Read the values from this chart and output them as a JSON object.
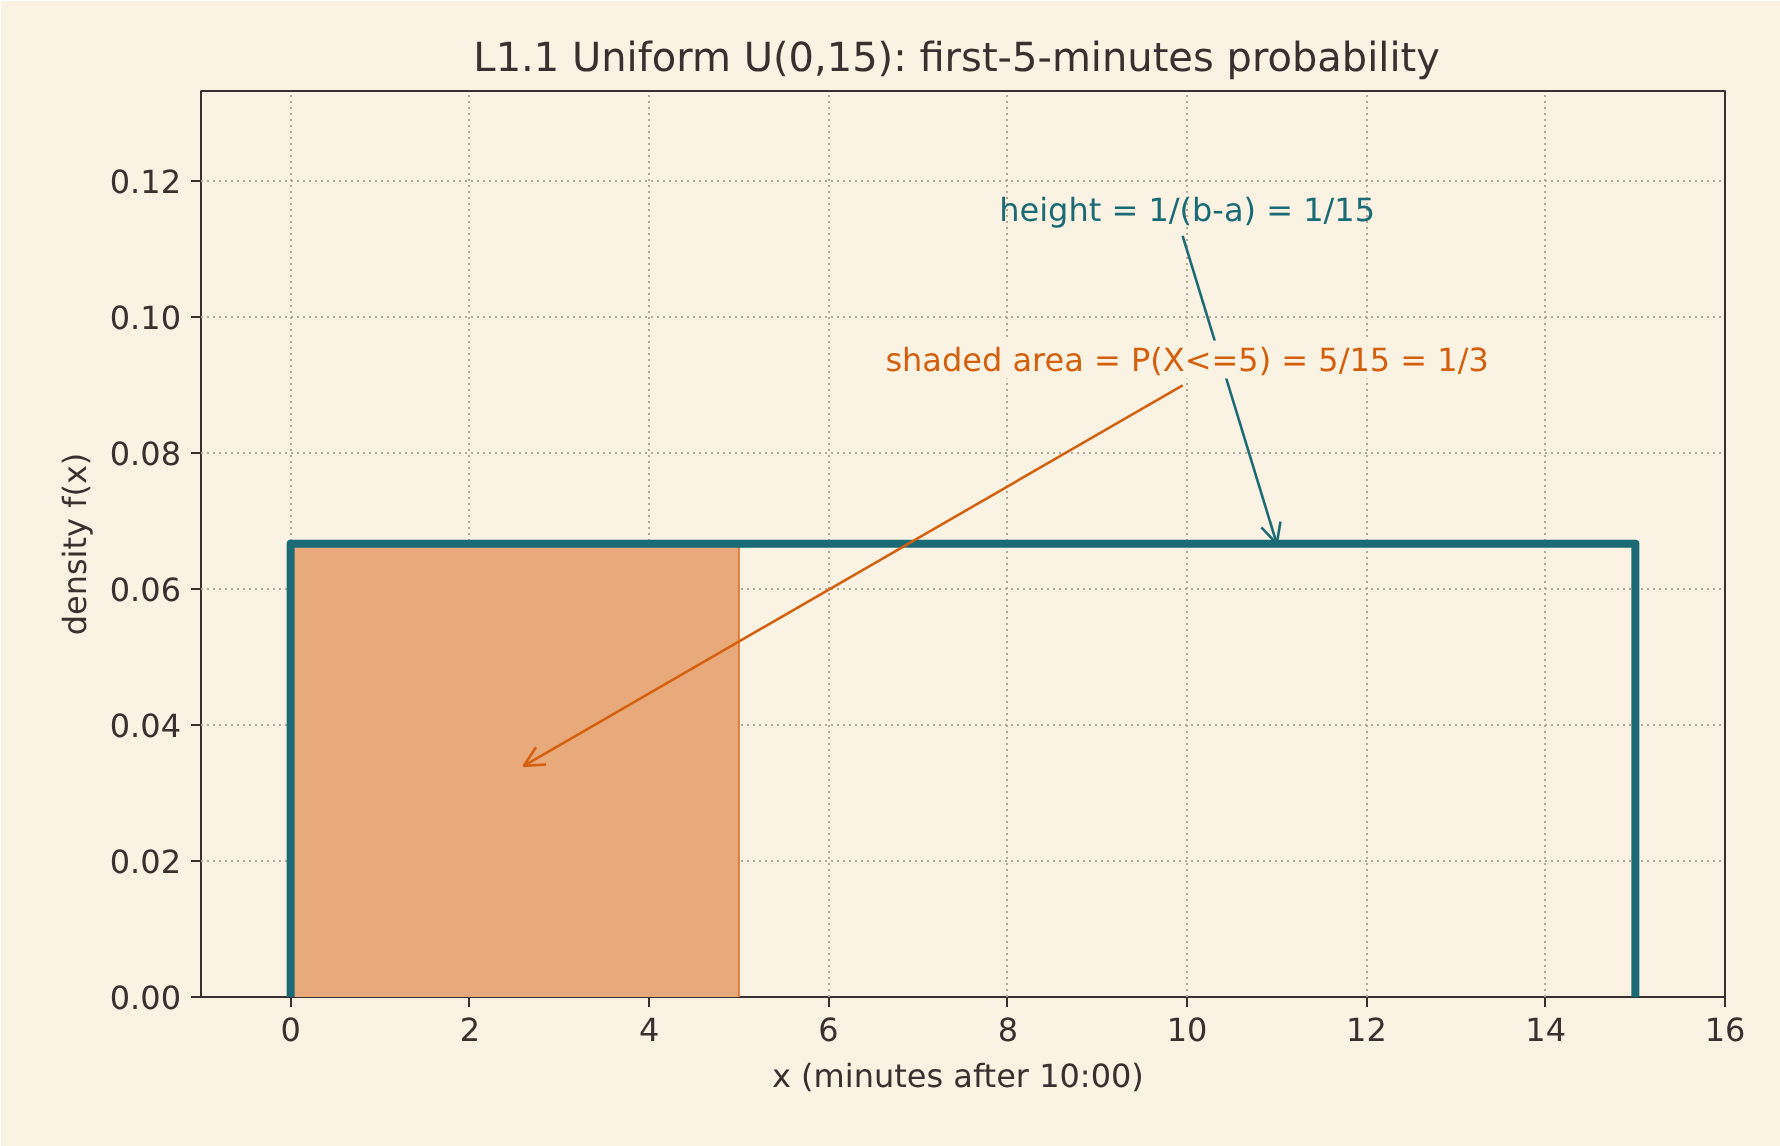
{
  "chart_data": {
    "type": "line",
    "title": "L1.1  Uniform U(0,15): first-5-minutes probability",
    "xlabel": "x  (minutes after 10:00)",
    "ylabel": "density f(x)",
    "series": [
      {
        "type": "area",
        "color": "#e8aa7a",
        "x": [
          0,
          5
        ],
        "values": [
          0.0667,
          0.0667
        ]
      },
      {
        "color": "#1b6b77",
        "x": [
          0,
          0,
          15,
          15
        ],
        "values": [
          0,
          0.0667,
          0.0667,
          0
        ]
      }
    ],
    "annotations": [
      {
        "text": "height = 1/(b-a) = 1/15",
        "x": 11,
        "y": 0.0667
      },
      "shaded area = P(X<=5) = 5/15 = 1/3"
    ],
    "xlim": [
      -1,
      16
    ],
    "ylim": [
      0,
      0.1333
    ],
    "xticks": [
      0,
      2,
      4,
      6,
      8,
      10,
      12,
      14,
      16
    ],
    "yticks": [
      {
        "value": 0,
        "label": "0.00"
      },
      {
        "value": 0.02,
        "label": "0.02"
      },
      {
        "value": 0.04,
        "label": "0.04"
      },
      {
        "value": 0.06,
        "label": "0.06"
      },
      {
        "value": 0.08,
        "label": "0.08"
      },
      {
        "value": 0.1,
        "label": "0.10"
      },
      {
        "value": 0.12,
        "label": "0.12"
      }
    ],
    "grid": true,
    "line_style": "solid"
  }
}
